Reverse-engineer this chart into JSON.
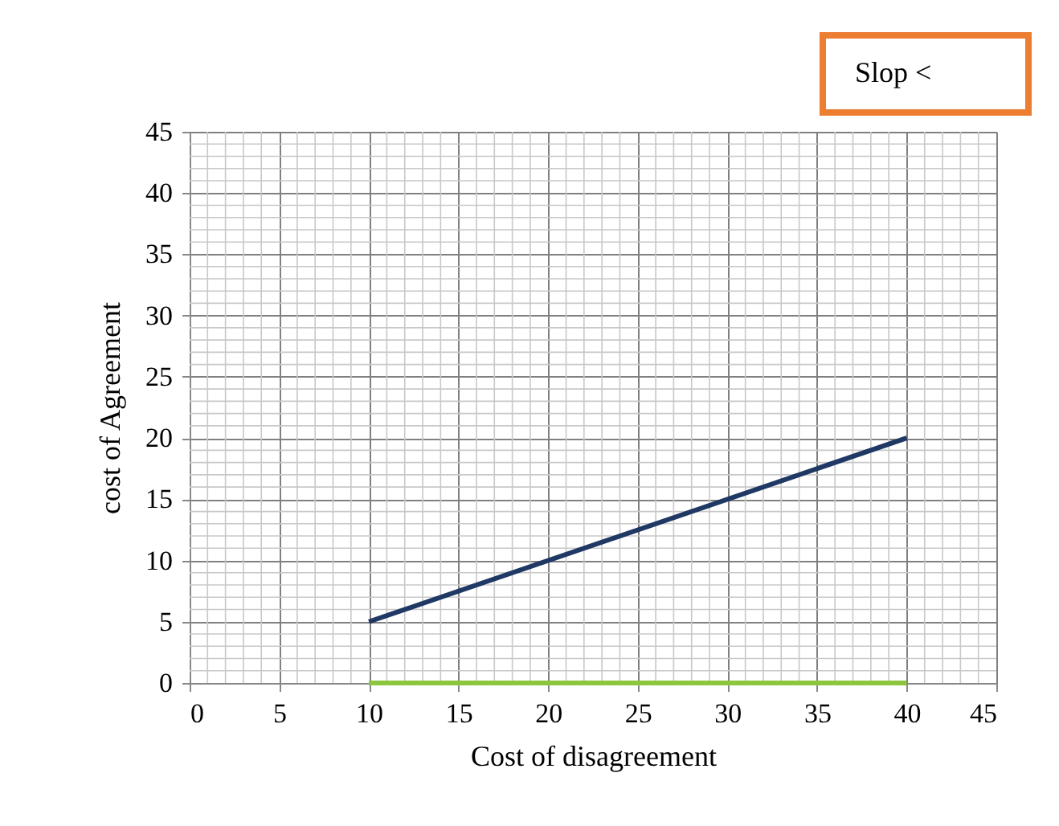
{
  "chart_data": {
    "type": "line",
    "xlabel": "Cost of disagreement",
    "ylabel": "cost of Agreement",
    "annotations": [
      "Slop <"
    ],
    "xlim": [
      0,
      45
    ],
    "ylim": [
      0,
      45
    ],
    "xticks": [
      0,
      5,
      10,
      15,
      20,
      25,
      30,
      35,
      40,
      45
    ],
    "yticks": [
      0,
      5,
      10,
      15,
      20,
      25,
      30,
      35,
      40,
      45
    ],
    "x": [
      10,
      40
    ],
    "series": [
      {
        "color": "#1f3864",
        "values": [
          5,
          20
        ]
      },
      {
        "color": "#8cc63f",
        "values": [
          0,
          0
        ]
      }
    ],
    "grid": true,
    "legend": false,
    "marker": "none",
    "line_style": "solid"
  }
}
